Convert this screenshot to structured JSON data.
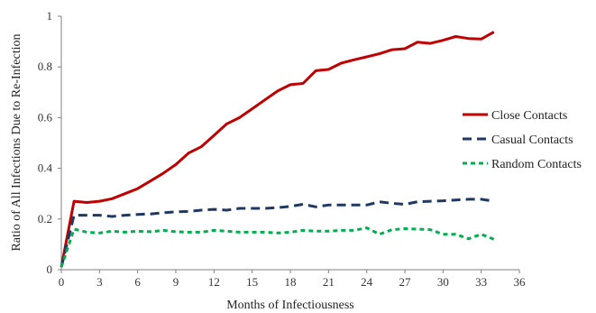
{
  "chart_data": {
    "type": "line",
    "title": "",
    "xlabel": "Months of Infectiousness",
    "ylabel": "Ratio of All Infections Due to Re-Infection",
    "xlim": [
      0,
      36
    ],
    "ylim": [
      0,
      1
    ],
    "xticks": [
      "0",
      "3",
      "6",
      "9",
      "12",
      "15",
      "18",
      "21",
      "24",
      "27",
      "30",
      "33",
      "36"
    ],
    "yticks": [
      "0",
      "0.2",
      "0.4",
      "0.6",
      "0.8",
      "1"
    ],
    "x": [
      0,
      1,
      2,
      3,
      4,
      5,
      6,
      7,
      8,
      9,
      10,
      11,
      12,
      13,
      14,
      15,
      16,
      17,
      18,
      19,
      20,
      21,
      22,
      23,
      24,
      25,
      26,
      27,
      28,
      29,
      30,
      31,
      32,
      33,
      34
    ],
    "grid": false,
    "legend_position": "right",
    "series": [
      {
        "name": "Close Contacts",
        "color": "#c00000",
        "dash": "solid",
        "values": [
          0.01,
          0.27,
          0.265,
          0.27,
          0.28,
          0.3,
          0.32,
          0.35,
          0.38,
          0.415,
          0.46,
          0.485,
          0.53,
          0.575,
          0.6,
          0.635,
          0.67,
          0.705,
          0.73,
          0.735,
          0.785,
          0.79,
          0.815,
          0.828,
          0.84,
          0.852,
          0.868,
          0.872,
          0.898,
          0.893,
          0.905,
          0.92,
          0.912,
          0.91,
          0.938
        ]
      },
      {
        "name": "Casual Contacts",
        "color": "#1f3864",
        "dash": "long",
        "values": [
          0.01,
          0.215,
          0.215,
          0.215,
          0.21,
          0.215,
          0.218,
          0.22,
          0.225,
          0.228,
          0.23,
          0.235,
          0.238,
          0.235,
          0.242,
          0.242,
          0.242,
          0.245,
          0.25,
          0.258,
          0.248,
          0.255,
          0.255,
          0.255,
          0.255,
          0.268,
          0.262,
          0.258,
          0.268,
          0.27,
          0.272,
          0.275,
          0.278,
          0.278,
          0.27
        ]
      },
      {
        "name": "Random Contacts",
        "color": "#00b050",
        "dash": "short",
        "values": [
          0.01,
          0.16,
          0.148,
          0.145,
          0.152,
          0.148,
          0.152,
          0.15,
          0.155,
          0.15,
          0.148,
          0.148,
          0.155,
          0.152,
          0.148,
          0.148,
          0.148,
          0.145,
          0.148,
          0.155,
          0.152,
          0.152,
          0.155,
          0.155,
          0.165,
          0.14,
          0.158,
          0.162,
          0.16,
          0.158,
          0.14,
          0.14,
          0.122,
          0.14,
          0.12
        ]
      }
    ]
  }
}
